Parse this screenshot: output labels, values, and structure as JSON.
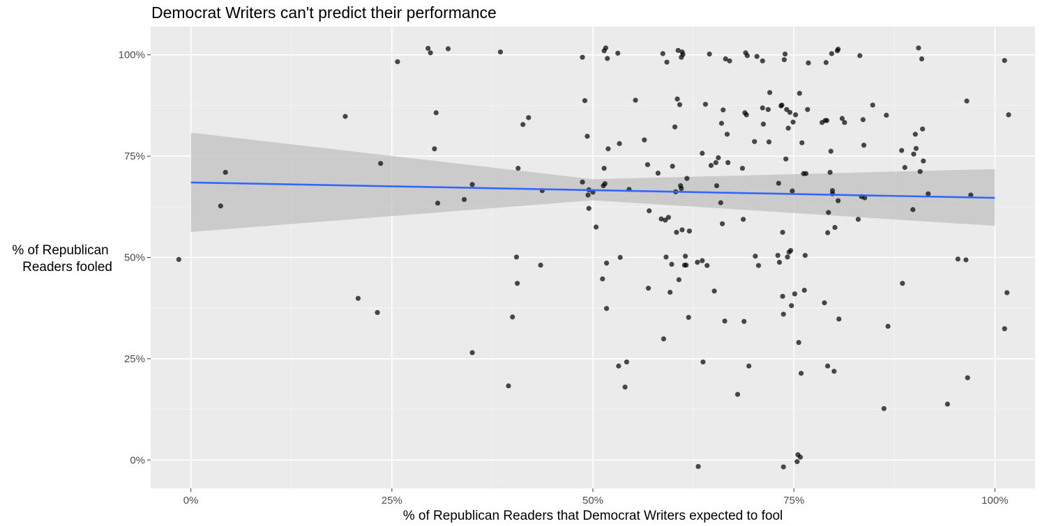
{
  "chart_data": {
    "type": "scatter",
    "title": "Democrat Writers can't predict their performance",
    "xlabel": "% of Republican Readers that Democrat Writers expected to fool",
    "ylabel_lines": [
      "% of Republican",
      "Readers fooled"
    ],
    "x_ticks": [
      {
        "v": 0,
        "label": "0%"
      },
      {
        "v": 0.25,
        "label": "25%"
      },
      {
        "v": 0.5,
        "label": "50%"
      },
      {
        "v": 0.75,
        "label": "75%"
      },
      {
        "v": 1,
        "label": "100%"
      }
    ],
    "y_ticks": [
      {
        "v": 0,
        "label": "0%"
      },
      {
        "v": 0.25,
        "label": "25%"
      },
      {
        "v": 0.5,
        "label": "50%"
      },
      {
        "v": 0.75,
        "label": "75%"
      },
      {
        "v": 1,
        "label": "100%"
      }
    ],
    "xlim": [
      -0.05,
      1.05
    ],
    "ylim": [
      -0.07,
      1.07
    ],
    "grid": true,
    "legend": "none",
    "colors": {
      "panel": "#ebebeb",
      "grid_major": "#ffffff",
      "point": "#000000",
      "fit_line": "#3366ff",
      "band": "#c0c0c0"
    },
    "fit": {
      "type": "linear",
      "x": [
        0,
        0.5,
        1
      ],
      "y": [
        0.685,
        0.666,
        0.647
      ],
      "band_lower": [
        0.563,
        0.641,
        0.578
      ],
      "band_upper": [
        0.808,
        0.693,
        0.718
      ]
    },
    "points": [
      [
        -0.015,
        0.495
      ],
      [
        0.037,
        0.627
      ],
      [
        0.043,
        0.71
      ],
      [
        0.192,
        0.848
      ],
      [
        0.208,
        0.399
      ],
      [
        0.232,
        0.364
      ],
      [
        0.236,
        0.732
      ],
      [
        0.257,
        0.983
      ],
      [
        0.295,
        1.016
      ],
      [
        0.298,
        1.005
      ],
      [
        0.303,
        0.768
      ],
      [
        0.305,
        0.857
      ],
      [
        0.307,
        0.634
      ],
      [
        0.32,
        1.015
      ],
      [
        0.34,
        0.643
      ],
      [
        0.35,
        0.68
      ],
      [
        0.35,
        0.265
      ],
      [
        0.385,
        1.007
      ],
      [
        0.395,
        0.183
      ],
      [
        0.4,
        0.353
      ],
      [
        0.405,
        0.501
      ],
      [
        0.406,
        0.436
      ],
      [
        0.407,
        0.72
      ],
      [
        0.413,
        0.828
      ],
      [
        0.42,
        0.845
      ],
      [
        0.435,
        0.481
      ],
      [
        0.437,
        0.665
      ],
      [
        0.487,
        0.686
      ],
      [
        0.487,
        0.994
      ],
      [
        0.49,
        0.887
      ],
      [
        0.493,
        0.799
      ],
      [
        0.494,
        0.654
      ],
      [
        0.495,
        0.621
      ],
      [
        0.495,
        0.667
      ],
      [
        0.5,
        0.661
      ],
      [
        0.504,
        0.575
      ],
      [
        0.512,
        0.447
      ],
      [
        0.513,
        0.677
      ],
      [
        0.514,
        1.01
      ],
      [
        0.514,
        0.72
      ],
      [
        0.515,
        0.682
      ],
      [
        0.516,
        1.017
      ],
      [
        0.517,
        0.486
      ],
      [
        0.517,
        0.374
      ],
      [
        0.518,
        0.991
      ],
      [
        0.519,
        0.768
      ],
      [
        0.531,
        1.004
      ],
      [
        0.532,
        0.232
      ],
      [
        0.533,
        0.781
      ],
      [
        0.534,
        0.5
      ],
      [
        0.54,
        0.18
      ],
      [
        0.542,
        0.242
      ],
      [
        0.545,
        0.668
      ],
      [
        0.553,
        0.888
      ],
      [
        0.564,
        0.79
      ],
      [
        0.568,
        0.729
      ],
      [
        0.569,
        0.424
      ],
      [
        0.57,
        0.615
      ],
      [
        0.581,
        0.708
      ],
      [
        0.585,
        0.595
      ],
      [
        0.587,
        1.003
      ],
      [
        0.588,
        0.299
      ],
      [
        0.59,
        0.592
      ],
      [
        0.591,
        0.501
      ],
      [
        0.592,
        0.982
      ],
      [
        0.594,
        0.599
      ],
      [
        0.596,
        0.414
      ],
      [
        0.598,
        0.483
      ],
      [
        0.599,
        0.725
      ],
      [
        0.602,
        0.822
      ],
      [
        0.603,
        0.662
      ],
      [
        0.604,
        0.562
      ],
      [
        0.605,
        0.891
      ],
      [
        0.606,
        1.011
      ],
      [
        0.607,
        0.445
      ],
      [
        0.608,
        0.877
      ],
      [
        0.609,
        0.677
      ],
      [
        0.61,
        0.67
      ],
      [
        0.61,
        0.994
      ],
      [
        0.611,
        1.007
      ],
      [
        0.612,
        1.001
      ],
      [
        0.611,
        0.568
      ],
      [
        0.614,
        0.481
      ],
      [
        0.615,
        0.503
      ],
      [
        0.616,
        0.481
      ],
      [
        0.617,
        0.695
      ],
      [
        0.619,
        0.352
      ],
      [
        0.62,
        0.565
      ],
      [
        0.63,
        0.488
      ],
      [
        0.631,
        -0.016
      ],
      [
        0.636,
        0.757
      ],
      [
        0.636,
        0.492
      ],
      [
        0.637,
        0.242
      ],
      [
        0.64,
        0.878
      ],
      [
        0.642,
        0.48
      ],
      [
        0.645,
        1.002
      ],
      [
        0.647,
        0.727
      ],
      [
        0.651,
        0.417
      ],
      [
        0.653,
        0.734
      ],
      [
        0.654,
        0.677
      ],
      [
        0.656,
        0.746
      ],
      [
        0.659,
        0.635
      ],
      [
        0.66,
        0.831
      ],
      [
        0.661,
        0.583
      ],
      [
        0.662,
        0.864
      ],
      [
        0.664,
        0.343
      ],
      [
        0.665,
        0.99
      ],
      [
        0.667,
        0.804
      ],
      [
        0.668,
        0.734
      ],
      [
        0.67,
        0.985
      ],
      [
        0.68,
        0.162
      ],
      [
        0.686,
        0.72
      ],
      [
        0.687,
        0.594
      ],
      [
        0.688,
        0.342
      ],
      [
        0.689,
        0.857
      ],
      [
        0.69,
        1.005
      ],
      [
        0.691,
        0.852
      ],
      [
        0.692,
        0.998
      ],
      [
        0.694,
        0.232
      ],
      [
        0.701,
        0.786
      ],
      [
        0.702,
        0.503
      ],
      [
        0.704,
        0.996
      ],
      [
        0.706,
        0.48
      ],
      [
        0.711,
        0.985
      ],
      [
        0.711,
        0.869
      ],
      [
        0.712,
        0.829
      ],
      [
        0.718,
        0.865
      ],
      [
        0.719,
        0.785
      ],
      [
        0.72,
        0.907
      ],
      [
        0.73,
        0.505
      ],
      [
        0.731,
        0.683
      ],
      [
        0.732,
        0.488
      ],
      [
        0.734,
        0.874
      ],
      [
        0.735,
        0.876
      ],
      [
        0.736,
        0.562
      ],
      [
        0.736,
        0.404
      ],
      [
        0.737,
        0.36
      ],
      [
        0.737,
        -0.017
      ],
      [
        0.738,
        0.988
      ],
      [
        0.739,
        1.002
      ],
      [
        0.74,
        0.743
      ],
      [
        0.741,
        0.865
      ],
      [
        0.742,
        0.501
      ],
      [
        0.743,
        0.819
      ],
      [
        0.744,
        0.513
      ],
      [
        0.745,
        0.858
      ],
      [
        0.746,
        0.517
      ],
      [
        0.747,
        0.381
      ],
      [
        0.748,
        0.664
      ],
      [
        0.749,
        0.834
      ],
      [
        0.751,
        0.41
      ],
      [
        0.752,
        0.852
      ],
      [
        0.754,
        -0.004
      ],
      [
        0.755,
        0.013
      ],
      [
        0.756,
        0.29
      ],
      [
        0.757,
        0.905
      ],
      [
        0.758,
        0.007
      ],
      [
        0.759,
        0.214
      ],
      [
        0.76,
        0.783
      ],
      [
        0.762,
        0.707
      ],
      [
        0.763,
        0.419
      ],
      [
        0.764,
        0.505
      ],
      [
        0.765,
        0.707
      ],
      [
        0.767,
        0.865
      ],
      [
        0.768,
        0.98
      ],
      [
        0.785,
        0.833
      ],
      [
        0.788,
        0.388
      ],
      [
        0.789,
        0.838
      ],
      [
        0.79,
        0.981
      ],
      [
        0.791,
        0.838
      ],
      [
        0.792,
        0.561
      ],
      [
        0.792,
        0.232
      ],
      [
        0.793,
        0.611
      ],
      [
        0.795,
        0.71
      ],
      [
        0.796,
        0.762
      ],
      [
        0.797,
        1.003
      ],
      [
        0.798,
        0.657
      ],
      [
        0.798,
        0.665
      ],
      [
        0.8,
        0.219
      ],
      [
        0.801,
        0.574
      ],
      [
        0.804,
        1.01
      ],
      [
        0.805,
        1.014
      ],
      [
        0.806,
        0.348
      ],
      [
        0.805,
        0.64
      ],
      [
        0.81,
        0.843
      ],
      [
        0.813,
        0.833
      ],
      [
        0.83,
        0.594
      ],
      [
        0.832,
        0.998
      ],
      [
        0.834,
        0.65
      ],
      [
        0.836,
        0.84
      ],
      [
        0.837,
        0.777
      ],
      [
        0.838,
        0.647
      ],
      [
        0.848,
        0.876
      ],
      [
        0.862,
        0.127
      ],
      [
        0.865,
        0.851
      ],
      [
        0.867,
        0.33
      ],
      [
        0.884,
        0.764
      ],
      [
        0.885,
        0.436
      ],
      [
        0.888,
        0.722
      ],
      [
        0.898,
        0.618
      ],
      [
        0.899,
        0.755
      ],
      [
        0.901,
        0.804
      ],
      [
        0.902,
        0.769
      ],
      [
        0.905,
        1.017
      ],
      [
        0.907,
        0.712
      ],
      [
        0.909,
        0.99
      ],
      [
        0.91,
        0.817
      ],
      [
        0.911,
        0.738
      ],
      [
        0.917,
        0.657
      ],
      [
        0.941,
        0.138
      ],
      [
        0.954,
        0.496
      ],
      [
        0.964,
        0.494
      ],
      [
        0.965,
        0.886
      ],
      [
        0.966,
        0.203
      ],
      [
        0.97,
        0.654
      ],
      [
        1.012,
        0.986
      ],
      [
        1.012,
        0.324
      ],
      [
        1.015,
        0.413
      ],
      [
        1.017,
        0.852
      ]
    ]
  }
}
